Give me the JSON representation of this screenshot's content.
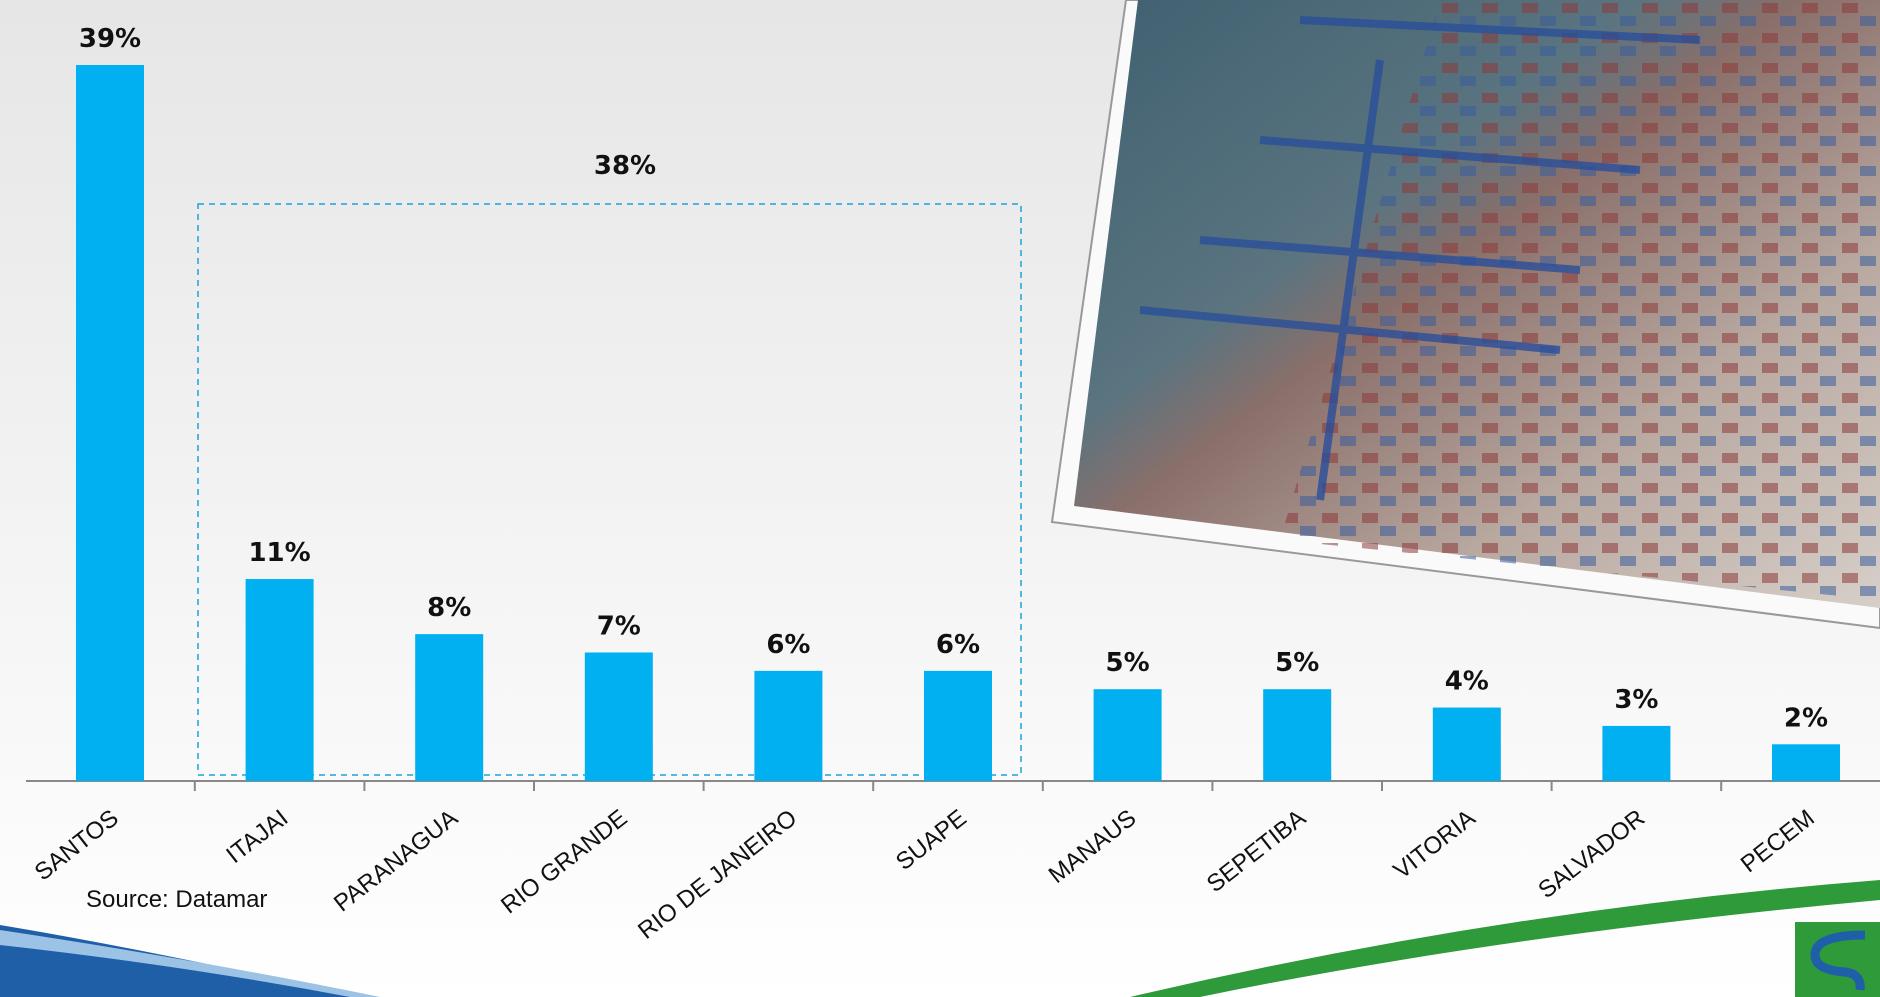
{
  "chart_data": {
    "type": "bar",
    "categories": [
      "SANTOS",
      "ITAJAI",
      "PARANAGUA",
      "RIO GRANDE",
      "RIO DE JANEIRO",
      "SUAPE",
      "MANAUS",
      "SEPETIBA",
      "VITORIA",
      "SALVADOR",
      "PECEM"
    ],
    "values": [
      39,
      11,
      8,
      7,
      6,
      6,
      5,
      5,
      4,
      3,
      2
    ],
    "value_labels": [
      "39%",
      "11%",
      "8%",
      "7%",
      "6%",
      "6%",
      "5%",
      "5%",
      "4%",
      "3%",
      "2%"
    ],
    "color": "#00b0f0",
    "annotation": "38%",
    "source": "Source: Datamar"
  }
}
